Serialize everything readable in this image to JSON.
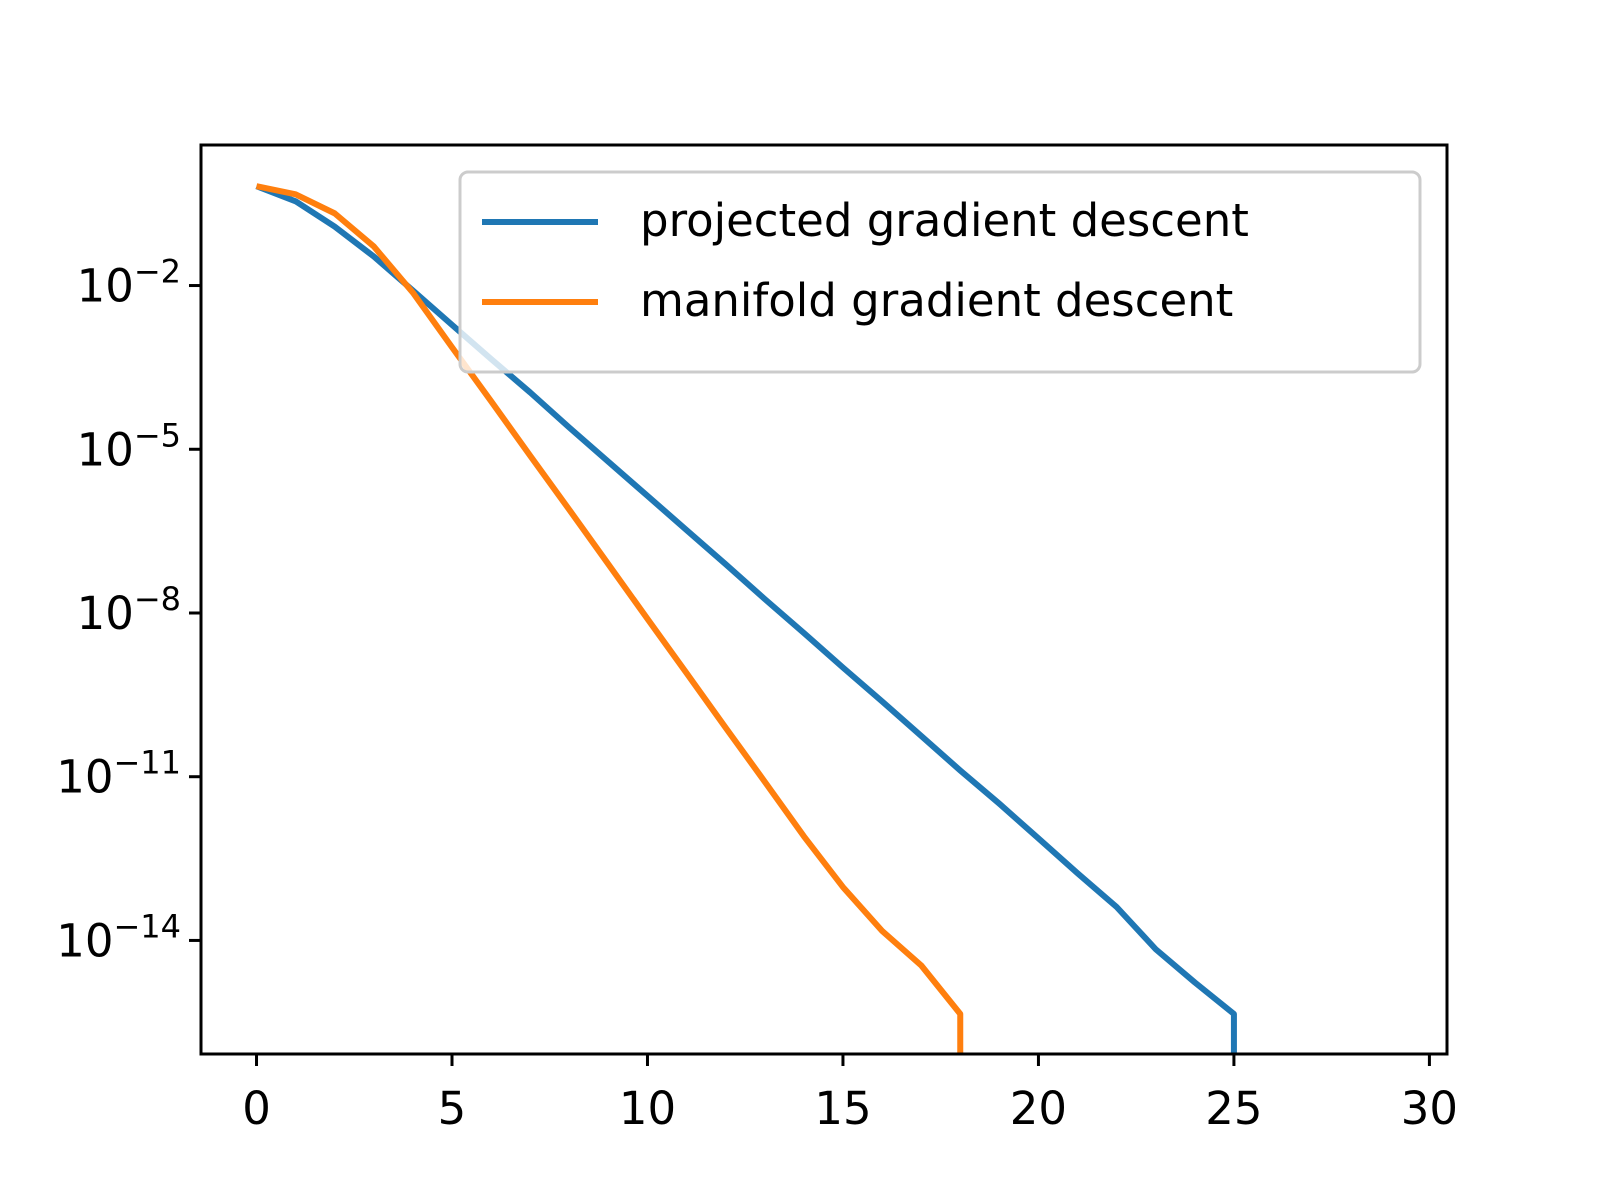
{
  "chart_data": {
    "type": "line",
    "log_y": true,
    "legend": "upper right",
    "xlim": [
      -1.42,
      30.45
    ],
    "xticks": [
      0,
      5,
      10,
      15,
      20,
      25,
      30
    ],
    "ylim": [
      8.3e-17,
      3.76
    ],
    "yticks": [
      {
        "value": 0.01,
        "label": "10−2"
      },
      {
        "value": 1e-05,
        "label": "10−5"
      },
      {
        "value": 1e-08,
        "label": "10−8"
      },
      {
        "value": 1e-11,
        "label": "10−11"
      },
      {
        "value": 1e-14,
        "label": "10−14"
      }
    ],
    "series": [
      {
        "name": "projected gradient descent",
        "color": "#1f77b4",
        "x": [
          0,
          1,
          2,
          3,
          4,
          5,
          6,
          7,
          8,
          9,
          10,
          11,
          12,
          13,
          14,
          15,
          16,
          17,
          18,
          19,
          20,
          21,
          22,
          23,
          24,
          25,
          25
        ],
        "values": [
          0.66,
          0.35,
          0.12,
          0.034,
          0.0081,
          0.0019,
          0.00045,
          0.00011,
          2.5e-05,
          5.9e-06,
          1.4e-06,
          3.3e-07,
          7.8e-08,
          1.8e-08,
          4.3e-09,
          1e-09,
          2.4e-10,
          5.6e-11,
          1.3e-11,
          3.2e-12,
          7.4e-13,
          1.7e-13,
          4.1e-14,
          6.9e-15,
          1.7e-15,
          4.5e-16,
          0
        ]
      },
      {
        "name": "manifold gradient descent",
        "color": "#ff7f0e",
        "x": [
          0,
          1,
          2,
          3,
          4,
          5,
          6,
          7,
          8,
          9,
          10,
          11,
          12,
          13,
          14,
          15,
          16,
          17,
          18,
          18
        ],
        "values": [
          0.66,
          0.47,
          0.21,
          0.052,
          0.0074,
          0.00074,
          7.6e-05,
          7.6e-06,
          7.8e-07,
          7.8e-08,
          7.8e-09,
          7.9e-10,
          7.9e-11,
          8.1e-12,
          8.1e-13,
          9.5e-14,
          1.5e-14,
          3.5e-15,
          4.5e-16,
          0
        ]
      }
    ]
  }
}
